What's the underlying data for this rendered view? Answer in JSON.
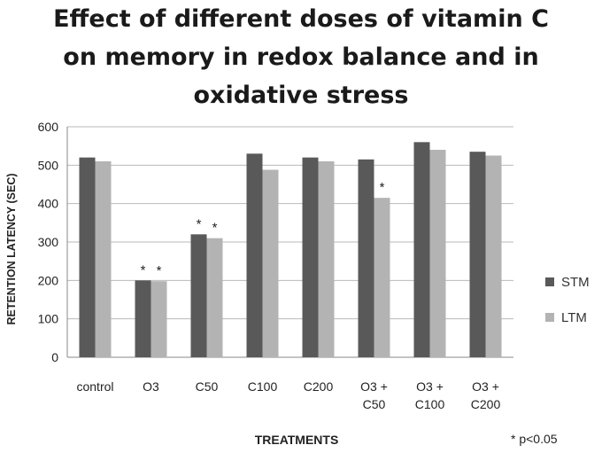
{
  "chart_data": {
    "type": "bar",
    "title_lines": [
      "Effect of different doses of vitamin C",
      "on memory in redox balance and in",
      "oxidative stress"
    ],
    "xlabel": "TREATMENTS",
    "ylabel": "RETENTION LATENCY (SEC)",
    "ylim": [
      0,
      600
    ],
    "yticks": [
      "0",
      "100",
      "200",
      "300",
      "400",
      "500",
      "600"
    ],
    "categories": [
      [
        "control"
      ],
      [
        "O3"
      ],
      [
        "C50"
      ],
      [
        "C100"
      ],
      [
        "C200"
      ],
      [
        "O3 +",
        "C50"
      ],
      [
        "O3 +",
        "C100"
      ],
      [
        "O3 +",
        "C200"
      ]
    ],
    "series": [
      {
        "name": "STM",
        "color": "#595959",
        "values": [
          520,
          200,
          320,
          530,
          520,
          515,
          560,
          535
        ]
      },
      {
        "name": "LTM",
        "color": "#b3b3b3",
        "values": [
          510,
          198,
          310,
          488,
          510,
          415,
          540,
          525
        ]
      }
    ],
    "significance": [
      {
        "category_index": 1,
        "series_index": 0,
        "label": "*"
      },
      {
        "category_index": 1,
        "series_index": 1,
        "label": "*"
      },
      {
        "category_index": 2,
        "series_index": 0,
        "label": "*"
      },
      {
        "category_index": 2,
        "series_index": 1,
        "label": "*"
      },
      {
        "category_index": 5,
        "series_index": 1,
        "label": "*"
      }
    ],
    "footnote": "* p<0.05",
    "grid": true,
    "legend_position": "right"
  }
}
